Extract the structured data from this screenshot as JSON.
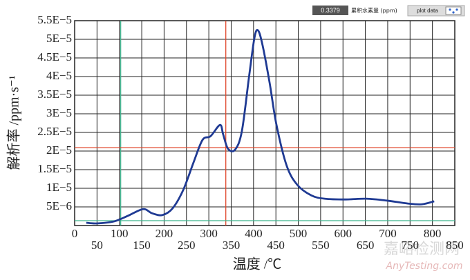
{
  "chart_data": {
    "type": "line",
    "xlabel": "温度 /℃",
    "ylabel": "解析率 /ppm·s⁻¹",
    "series": [
      {
        "color": "#1f3a93",
        "x": [
          26,
          49,
          88,
          119,
          153,
          173,
          196,
          219,
          243,
          266,
          286,
          304,
          325,
          332,
          343,
          359,
          374,
          390,
          402,
          410,
          420,
          436,
          451,
          474,
          498,
          529,
          559,
          606,
          652,
          698,
          745,
          776,
          804
        ],
        "values": [
          7.4e-07,
          5.6e-07,
          1.1e-06,
          2.6e-06,
          4.4e-06,
          3.3e-06,
          2.8e-06,
          4.6e-06,
          9.6e-06,
          1.7e-05,
          2.3e-05,
          2.4e-05,
          2.7e-05,
          2.45e-05,
          2.06e-05,
          2.04e-05,
          2.54e-05,
          4e-05,
          5.04e-05,
          5.24e-05,
          4.85e-05,
          3.83e-05,
          2.72e-05,
          1.61e-05,
          1.09e-05,
          8.1e-06,
          7.2e-06,
          7e-06,
          7.2e-06,
          6.7e-06,
          5.9e-06,
          5.7e-06,
          6.5e-06
        ]
      }
    ],
    "xlim": [
      0,
      850
    ],
    "xticks": [
      0,
      50,
      100,
      150,
      200,
      250,
      300,
      350,
      400,
      450,
      500,
      550,
      600,
      650,
      700,
      750,
      800,
      850
    ],
    "ylim": [
      0,
      5.5e-05
    ],
    "yticks": [
      {
        "value": 5e-06,
        "label": "5E−6"
      },
      {
        "value": 1e-05,
        "label": "1E−5"
      },
      {
        "value": 1.5e-05,
        "label": "1.5E−5"
      },
      {
        "value": 2e-05,
        "label": "2E−5"
      },
      {
        "value": 2.5e-05,
        "label": "2.5E−5"
      },
      {
        "value": 3e-05,
        "label": "3E−5"
      },
      {
        "value": 3.5e-05,
        "label": "3.5E−5"
      },
      {
        "value": 4e-05,
        "label": "4E−5"
      },
      {
        "value": 4.5e-05,
        "label": "4.5E−5"
      },
      {
        "value": 5e-05,
        "label": "5E−5"
      },
      {
        "value": 5.5e-05,
        "label": "5.5E−5"
      }
    ],
    "grid": true,
    "cursors": [
      {
        "axis": "x",
        "value": 103,
        "color": "#3cb38c"
      },
      {
        "axis": "x",
        "value": 338,
        "color": "#e0462a"
      },
      {
        "axis": "y",
        "value": 2.09e-05,
        "color": "#e0462a"
      },
      {
        "axis": "y",
        "value": 1.3e-06,
        "color": "#3cb38c"
      }
    ]
  },
  "widget": {
    "readout": "0.3379",
    "readout_label": "累积水素量 (ppm)",
    "button": "plot data"
  },
  "watermark": {
    "cn": "嘉峪检测网",
    "en": "AnyTesting.com"
  }
}
